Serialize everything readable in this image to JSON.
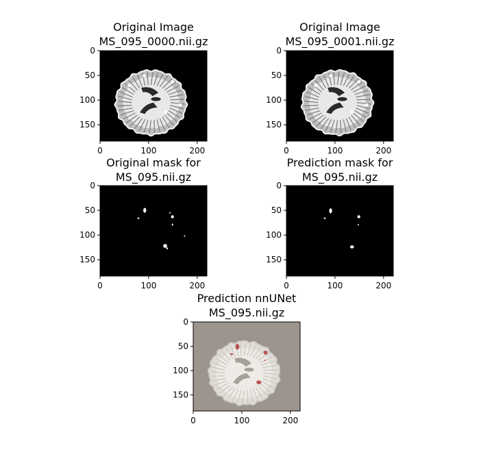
{
  "chart_data": [
    {
      "type": "image",
      "id": "p1",
      "title_lines": [
        "Original Image",
        "MS_095_0000.nii.gz"
      ],
      "image": "brain-mri-slice",
      "xlim": [
        0,
        220
      ],
      "ylim": [
        0,
        183
      ],
      "xticks": [
        0,
        100,
        200
      ],
      "yticks": [
        0,
        50,
        100,
        150
      ]
    },
    {
      "type": "image",
      "id": "p2",
      "title_lines": [
        "Original Image",
        "MS_095_0001.nii.gz"
      ],
      "image": "brain-mri-slice",
      "xlim": [
        0,
        220
      ],
      "ylim": [
        0,
        183
      ],
      "xticks": [
        0,
        100,
        200
      ],
      "yticks": [
        0,
        50,
        100,
        150
      ]
    },
    {
      "type": "image",
      "id": "p3",
      "title_lines": [
        "Original mask for",
        "MS_095.nii.gz"
      ],
      "image": "binary-lesion-mask",
      "xlim": [
        0,
        220
      ],
      "ylim": [
        0,
        183
      ],
      "xticks": [
        0,
        100,
        200
      ],
      "yticks": [
        0,
        50,
        100,
        150
      ],
      "lesions": [
        {
          "x": 92,
          "y": 50,
          "rx": 3,
          "ry": 5
        },
        {
          "x": 79,
          "y": 66,
          "rx": 2,
          "ry": 1.5
        },
        {
          "x": 149,
          "y": 63,
          "rx": 3,
          "ry": 3
        },
        {
          "x": 144,
          "y": 55,
          "rx": 1,
          "ry": 1
        },
        {
          "x": 149,
          "y": 79,
          "rx": 1,
          "ry": 2
        },
        {
          "x": 134,
          "y": 122,
          "rx": 4,
          "ry": 4
        },
        {
          "x": 138,
          "y": 127,
          "rx": 1.5,
          "ry": 2
        },
        {
          "x": 174,
          "y": 102,
          "rx": 1,
          "ry": 1
        }
      ]
    },
    {
      "type": "image",
      "id": "p4",
      "title_lines": [
        "Prediction mask for",
        "MS_095.nii.gz"
      ],
      "image": "binary-lesion-mask",
      "xlim": [
        0,
        220
      ],
      "ylim": [
        0,
        183
      ],
      "xticks": [
        0,
        100,
        200
      ],
      "yticks": [
        0,
        50,
        100,
        150
      ],
      "lesions": [
        {
          "x": 91,
          "y": 51,
          "rx": 3,
          "ry": 5
        },
        {
          "x": 79,
          "y": 66,
          "rx": 2,
          "ry": 1.5
        },
        {
          "x": 149,
          "y": 63,
          "rx": 3,
          "ry": 3
        },
        {
          "x": 148,
          "y": 79,
          "rx": 1,
          "ry": 1
        },
        {
          "x": 135,
          "y": 124,
          "rx": 4,
          "ry": 3
        }
      ]
    },
    {
      "type": "image",
      "id": "p5",
      "title_lines": [
        "Prediction nnUNet",
        "MS_095.nii.gz"
      ],
      "image": "brain-overlay",
      "xlim": [
        0,
        220
      ],
      "ylim": [
        0,
        183
      ],
      "xticks": [
        0,
        100,
        200
      ],
      "yticks": [
        0,
        50,
        100,
        150
      ],
      "lesions": [
        {
          "x": 91,
          "y": 51,
          "rx": 4,
          "ry": 6
        },
        {
          "x": 79,
          "y": 66,
          "rx": 3,
          "ry": 2
        },
        {
          "x": 149,
          "y": 63,
          "rx": 4,
          "ry": 4
        },
        {
          "x": 148,
          "y": 79,
          "rx": 1.5,
          "ry": 1.5
        },
        {
          "x": 135,
          "y": 124,
          "rx": 5,
          "ry": 4
        }
      ]
    }
  ],
  "colors": {
    "brain_bg": "#000000",
    "overlay_bg": "#9b958d",
    "lesion_overlay": "#b03a3a",
    "mask_fg": "#ffffff"
  }
}
